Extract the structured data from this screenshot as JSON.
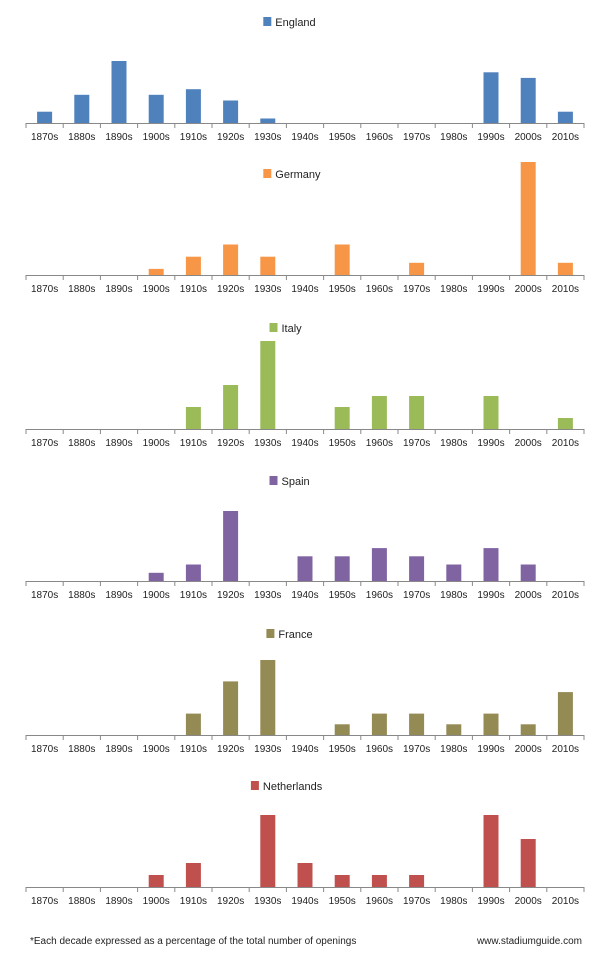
{
  "footnote": "*Each decade expressed as a percentage of the total number of openings",
  "source": "www.stadiumguide.com",
  "chart_data": [
    {
      "type": "bar",
      "legend": "England",
      "color": "#4f81bd",
      "categories": [
        "1870s",
        "1880s",
        "1890s",
        "1900s",
        "1910s",
        "1920s",
        "1930s",
        "1940s",
        "1950s",
        "1960s",
        "1970s",
        "1980s",
        "1990s",
        "2000s",
        "2010s"
      ],
      "values": [
        2,
        5,
        11,
        5,
        6,
        4,
        0.8,
        0,
        0,
        0,
        0,
        0,
        9,
        8,
        2
      ]
    },
    {
      "type": "bar",
      "legend": "Germany",
      "color": "#f79646",
      "categories": [
        "1870s",
        "1880s",
        "1890s",
        "1900s",
        "1910s",
        "1920s",
        "1930s",
        "1940s",
        "1950s",
        "1960s",
        "1970s",
        "1980s",
        "1990s",
        "2000s",
        "2010s"
      ],
      "values": [
        0,
        0,
        0,
        2,
        6,
        10,
        6,
        0,
        10,
        0,
        4,
        0,
        0,
        37,
        4
      ]
    },
    {
      "type": "bar",
      "legend": "Italy",
      "color": "#9bbb59",
      "categories": [
        "1870s",
        "1880s",
        "1890s",
        "1900s",
        "1910s",
        "1920s",
        "1930s",
        "1940s",
        "1950s",
        "1960s",
        "1970s",
        "1980s",
        "1990s",
        "2000s",
        "2010s"
      ],
      "values": [
        0,
        0,
        0,
        0,
        4,
        8,
        16,
        0,
        4,
        6,
        6,
        0,
        6,
        0,
        2
      ]
    },
    {
      "type": "bar",
      "legend": "Spain",
      "color": "#8064a2",
      "categories": [
        "1870s",
        "1880s",
        "1890s",
        "1900s",
        "1910s",
        "1920s",
        "1930s",
        "1940s",
        "1950s",
        "1960s",
        "1970s",
        "1980s",
        "1990s",
        "2000s",
        "2010s"
      ],
      "values": [
        0,
        0,
        0,
        2,
        4,
        17,
        0,
        6,
        6,
        8,
        6,
        4,
        8,
        4,
        0
      ]
    },
    {
      "type": "bar",
      "legend": "France",
      "color": "#948a54",
      "categories": [
        "1870s",
        "1880s",
        "1890s",
        "1900s",
        "1910s",
        "1920s",
        "1930s",
        "1940s",
        "1950s",
        "1960s",
        "1970s",
        "1980s",
        "1990s",
        "2000s",
        "2010s"
      ],
      "values": [
        0,
        0,
        0,
        0,
        4,
        10,
        14,
        0,
        2,
        4,
        4,
        2,
        4,
        2,
        8
      ]
    },
    {
      "type": "bar",
      "legend": "Netherlands",
      "color": "#c0504d",
      "categories": [
        "1870s",
        "1880s",
        "1890s",
        "1900s",
        "1910s",
        "1920s",
        "1930s",
        "1940s",
        "1950s",
        "1960s",
        "1970s",
        "1980s",
        "1990s",
        "2000s",
        "2010s"
      ],
      "values": [
        0,
        0,
        0,
        2,
        4,
        0,
        12,
        4,
        2,
        2,
        2,
        0,
        12,
        8,
        0
      ]
    }
  ]
}
